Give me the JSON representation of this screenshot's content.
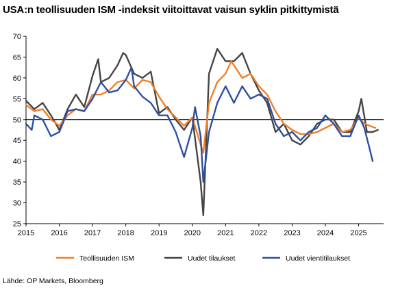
{
  "title": "USA:n teollisuuden ISM -indeksit viitoittavat vaisun syklin pitkittymistä",
  "source": "Lähde: OP Markets, Bloomberg",
  "chart_data": {
    "type": "line",
    "title": "USA:n teollisuuden ISM -indeksit viitoittavat vaisun syklin pitkittymistä",
    "xlabel": "",
    "ylabel": "",
    "xlim": [
      2015.0,
      2025.75
    ],
    "ylim": [
      25,
      70
    ],
    "x_ticks": [
      "2015",
      "2016",
      "2017",
      "2018",
      "2019",
      "2020",
      "2021",
      "2022",
      "2023",
      "2024",
      "2025"
    ],
    "y_ticks": [
      "25",
      "30",
      "35",
      "40",
      "45",
      "50",
      "55",
      "60",
      "65",
      "70"
    ],
    "reference_line": 50,
    "grid": false,
    "legend_position": "bottom",
    "series": [
      {
        "name": "Teollisuuden ISM",
        "color": "#f07e26",
        "points": [
          [
            2015.0,
            53.5
          ],
          [
            2015.25,
            52.0
          ],
          [
            2015.5,
            52.5
          ],
          [
            2015.75,
            50.0
          ],
          [
            2016.0,
            48.5
          ],
          [
            2016.25,
            51.0
          ],
          [
            2016.5,
            52.5
          ],
          [
            2016.75,
            52.0
          ],
          [
            2017.0,
            56.0
          ],
          [
            2017.25,
            56.0
          ],
          [
            2017.5,
            57.0
          ],
          [
            2017.75,
            59.0
          ],
          [
            2018.0,
            59.5
          ],
          [
            2018.25,
            57.5
          ],
          [
            2018.5,
            59.5
          ],
          [
            2018.75,
            59.0
          ],
          [
            2019.0,
            55.5
          ],
          [
            2019.25,
            52.5
          ],
          [
            2019.5,
            50.5
          ],
          [
            2019.75,
            48.5
          ],
          [
            2020.0,
            50.5
          ],
          [
            2020.25,
            44.0
          ],
          [
            2020.33,
            42.0
          ],
          [
            2020.5,
            54.0
          ],
          [
            2020.75,
            59.0
          ],
          [
            2021.0,
            61.0
          ],
          [
            2021.17,
            64.0
          ],
          [
            2021.5,
            60.0
          ],
          [
            2021.75,
            61.0
          ],
          [
            2022.0,
            58.0
          ],
          [
            2022.25,
            56.0
          ],
          [
            2022.5,
            52.0
          ],
          [
            2022.75,
            49.0
          ],
          [
            2023.0,
            47.5
          ],
          [
            2023.25,
            46.5
          ],
          [
            2023.5,
            46.5
          ],
          [
            2023.75,
            47.0
          ],
          [
            2024.0,
            48.0
          ],
          [
            2024.25,
            49.0
          ],
          [
            2024.5,
            47.0
          ],
          [
            2024.75,
            47.5
          ],
          [
            2025.0,
            50.5
          ],
          [
            2025.17,
            49.0
          ],
          [
            2025.5,
            48.0
          ]
        ]
      },
      {
        "name": "Uudet tilaukset",
        "color": "#444444",
        "points": [
          [
            2015.0,
            54.5
          ],
          [
            2015.25,
            52.5
          ],
          [
            2015.5,
            54.0
          ],
          [
            2015.75,
            51.0
          ],
          [
            2016.0,
            47.5
          ],
          [
            2016.25,
            52.5
          ],
          [
            2016.5,
            56.0
          ],
          [
            2016.75,
            53.0
          ],
          [
            2017.0,
            60.5
          ],
          [
            2017.17,
            64.5
          ],
          [
            2017.25,
            59.0
          ],
          [
            2017.5,
            60.0
          ],
          [
            2017.75,
            63.0
          ],
          [
            2017.92,
            66.0
          ],
          [
            2018.0,
            65.5
          ],
          [
            2018.25,
            61.0
          ],
          [
            2018.5,
            60.0
          ],
          [
            2018.75,
            61.5
          ],
          [
            2019.0,
            51.5
          ],
          [
            2019.25,
            53.0
          ],
          [
            2019.5,
            50.0
          ],
          [
            2019.75,
            47.5
          ],
          [
            2020.0,
            50.5
          ],
          [
            2020.25,
            35.0
          ],
          [
            2020.33,
            27.0
          ],
          [
            2020.5,
            61.0
          ],
          [
            2020.75,
            67.0
          ],
          [
            2021.0,
            64.0
          ],
          [
            2021.25,
            64.0
          ],
          [
            2021.5,
            66.0
          ],
          [
            2021.75,
            61.0
          ],
          [
            2022.0,
            57.0
          ],
          [
            2022.25,
            54.0
          ],
          [
            2022.5,
            47.0
          ],
          [
            2022.75,
            49.0
          ],
          [
            2023.0,
            45.0
          ],
          [
            2023.25,
            44.0
          ],
          [
            2023.5,
            46.0
          ],
          [
            2023.75,
            49.0
          ],
          [
            2024.0,
            50.0
          ],
          [
            2024.25,
            50.0
          ],
          [
            2024.5,
            47.0
          ],
          [
            2024.75,
            47.0
          ],
          [
            2025.0,
            52.0
          ],
          [
            2025.08,
            55.0
          ],
          [
            2025.25,
            47.0
          ],
          [
            2025.42,
            47.0
          ],
          [
            2025.58,
            47.5
          ]
        ]
      },
      {
        "name": "Uudet vientitilaukset",
        "color": "#2e4fa0",
        "points": [
          [
            2015.0,
            49.0
          ],
          [
            2015.17,
            47.5
          ],
          [
            2015.25,
            51.0
          ],
          [
            2015.5,
            50.0
          ],
          [
            2015.75,
            46.0
          ],
          [
            2016.0,
            47.0
          ],
          [
            2016.25,
            52.0
          ],
          [
            2016.5,
            52.5
          ],
          [
            2016.75,
            52.0
          ],
          [
            2017.0,
            55.0
          ],
          [
            2017.25,
            59.0
          ],
          [
            2017.5,
            56.5
          ],
          [
            2017.75,
            57.0
          ],
          [
            2018.0,
            59.5
          ],
          [
            2018.17,
            62.5
          ],
          [
            2018.25,
            58.0
          ],
          [
            2018.5,
            55.5
          ],
          [
            2018.75,
            54.0
          ],
          [
            2019.0,
            51.0
          ],
          [
            2019.25,
            51.0
          ],
          [
            2019.5,
            47.0
          ],
          [
            2019.75,
            41.0
          ],
          [
            2020.0,
            48.0
          ],
          [
            2020.08,
            53.0
          ],
          [
            2020.25,
            46.0
          ],
          [
            2020.33,
            35.0
          ],
          [
            2020.5,
            47.0
          ],
          [
            2020.75,
            54.0
          ],
          [
            2021.0,
            58.0
          ],
          [
            2021.25,
            54.0
          ],
          [
            2021.5,
            58.0
          ],
          [
            2021.75,
            55.0
          ],
          [
            2022.0,
            56.0
          ],
          [
            2022.25,
            55.0
          ],
          [
            2022.5,
            49.0
          ],
          [
            2022.75,
            46.0
          ],
          [
            2023.0,
            47.0
          ],
          [
            2023.25,
            45.0
          ],
          [
            2023.5,
            47.0
          ],
          [
            2023.75,
            48.0
          ],
          [
            2024.0,
            51.0
          ],
          [
            2024.25,
            49.0
          ],
          [
            2024.5,
            46.0
          ],
          [
            2024.75,
            46.0
          ],
          [
            2025.0,
            51.0
          ],
          [
            2025.17,
            48.0
          ],
          [
            2025.33,
            43.0
          ],
          [
            2025.42,
            40.0
          ]
        ]
      }
    ]
  }
}
